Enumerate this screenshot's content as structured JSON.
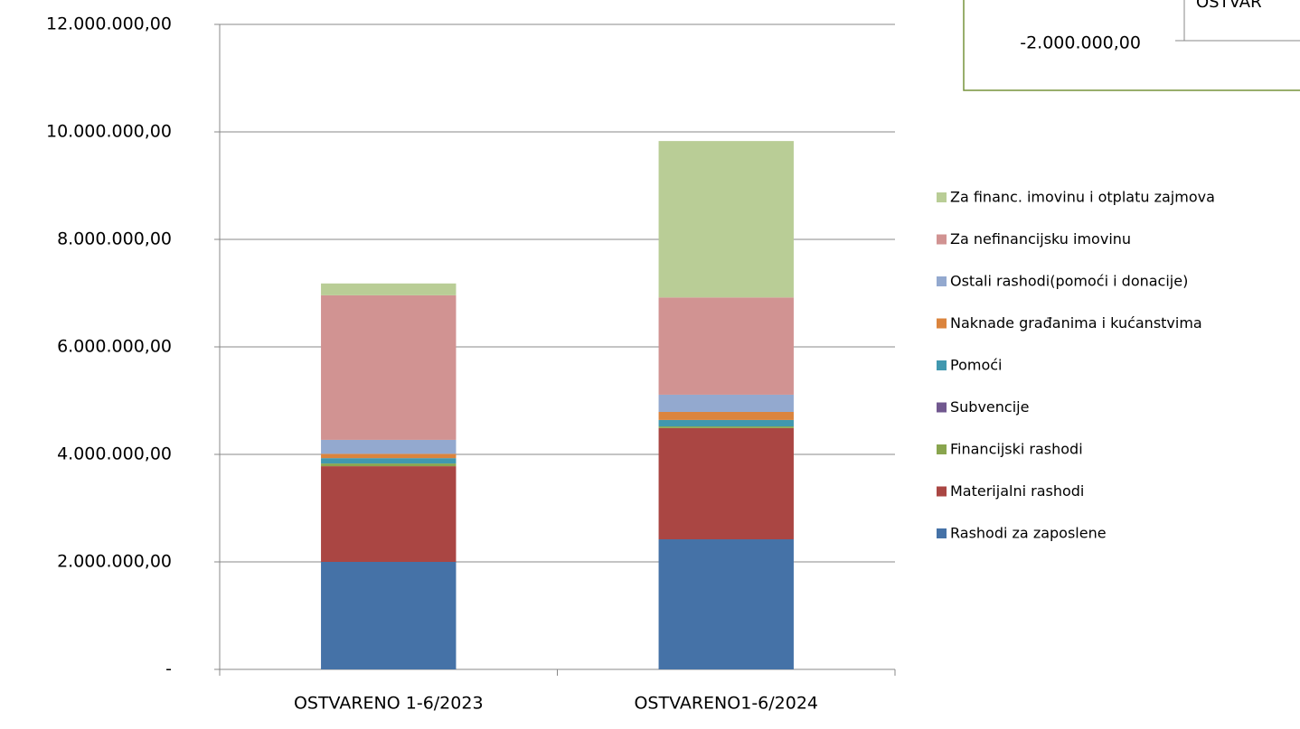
{
  "chart_data": {
    "type": "stacked_bar",
    "categories": [
      "OSTVARENO 1-6/2023",
      "OSTVARENO1-6/2024"
    ],
    "series": [
      {
        "name": "Rashodi za zaposlene",
        "color": "#4572a7",
        "values": [
          2000000,
          2420000
        ]
      },
      {
        "name": "Materijalni rashodi",
        "color": "#aa4643",
        "values": [
          1780000,
          2070000
        ]
      },
      {
        "name": "Financijski rashodi",
        "color": "#89a54e",
        "values": [
          50000,
          30000
        ]
      },
      {
        "name": "Subvencije",
        "color": "#71588f",
        "values": [
          0,
          0
        ]
      },
      {
        "name": "Pomoći",
        "color": "#4198af",
        "values": [
          100000,
          120000
        ]
      },
      {
        "name": "Naknade građanima i kućanstvima",
        "color": "#db843d",
        "values": [
          80000,
          150000
        ]
      },
      {
        "name": "Ostali rashodi(pomoći i donacije)",
        "color": "#93a9cf",
        "values": [
          260000,
          320000
        ]
      },
      {
        "name": "Za nefinancijsku imovinu",
        "color": "#d19392",
        "values": [
          2690000,
          1810000
        ]
      },
      {
        "name": "Za financ. imovinu i otplatu zajmova",
        "color": "#b9cd96",
        "values": [
          220000,
          2910000
        ]
      }
    ],
    "ylim": [
      0,
      12000000
    ],
    "yticks": [
      {
        "value": 0,
        "label": "-"
      },
      {
        "value": 2000000,
        "label": "2.000.000,00"
      },
      {
        "value": 4000000,
        "label": "4.000.000,00"
      },
      {
        "value": 6000000,
        "label": "6.000.000,00"
      },
      {
        "value": 8000000,
        "label": "8.000.000,00"
      },
      {
        "value": 10000000,
        "label": "10.000.000,00"
      },
      {
        "value": 12000000,
        "label": "12.000.000,00"
      }
    ],
    "grid": true,
    "legend": "right"
  },
  "inset": {
    "ytick": "-2.000.000,00",
    "category": "OSTVAR",
    "border_color": "#77933c"
  }
}
